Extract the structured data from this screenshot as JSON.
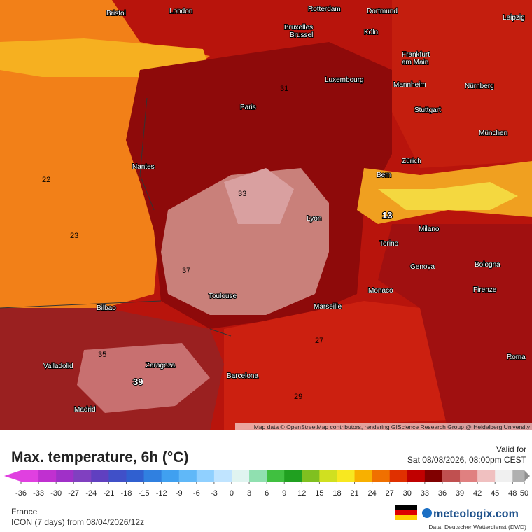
{
  "header": {
    "title": "Max. temperature, 6h (°C)",
    "valid_label": "Valid for",
    "valid_time": "Sat 08/08/2026, 08:00pm CEST"
  },
  "legend": {
    "ticks": [
      -36,
      -33,
      -30,
      -27,
      -24,
      -21,
      -18,
      -15,
      -12,
      -9,
      -6,
      -3,
      0,
      3,
      6,
      9,
      12,
      15,
      18,
      21,
      24,
      27,
      30,
      33,
      36,
      39,
      42,
      45,
      48,
      50
    ],
    "colors": [
      "#e040e0",
      "#c030d0",
      "#a030c8",
      "#8040c0",
      "#6040c0",
      "#4050c8",
      "#3060d0",
      "#3080e0",
      "#40a0f0",
      "#60b8f8",
      "#90d0ff",
      "#c0e4ff",
      "#e0f4f0",
      "#90e0b0",
      "#40c040",
      "#20a020",
      "#80c020",
      "#d0e020",
      "#f8e820",
      "#f8b000",
      "#f07000",
      "#e03000",
      "#c00000",
      "#800000",
      "#c05050",
      "#e08080",
      "#f0c0c0",
      "#f0f0f0",
      "#b0b0b0",
      "#909090"
    ]
  },
  "footer": {
    "region": "France",
    "model": "ICON (7 days)  from  08/04/2026/12z",
    "brand": "meteologix.com",
    "source": "Data: Deutscher Wetterdienst (DWD)",
    "attribution": "Map data © OpenStreetMap contributors, rendering GIScience Research Group @ Heidelberg University"
  },
  "cities": [
    "Bristol",
    "London",
    "Rotterdam",
    "Dortmund",
    "Leipzig",
    "Bruxelles",
    "Brussel",
    "Köln",
    "Frankfurt",
    "am Main",
    "Luxembourg",
    "Mannheim",
    "Nürnberg",
    "Paris",
    "Stuttgart",
    "München",
    "Nantes",
    "Zürich",
    "Bern",
    "Lyon",
    "Milano",
    "Torino",
    "Bologna",
    "Genova",
    "Monaco",
    "Firenze",
    "Toulouse",
    "Marseille",
    "Bilbao",
    "Valladolid",
    "Zaragoza",
    "Barcelona",
    "Roma",
    "Madrid"
  ],
  "map_values": [
    39,
    13,
    22,
    23,
    31,
    33,
    37,
    27,
    29,
    35
  ]
}
